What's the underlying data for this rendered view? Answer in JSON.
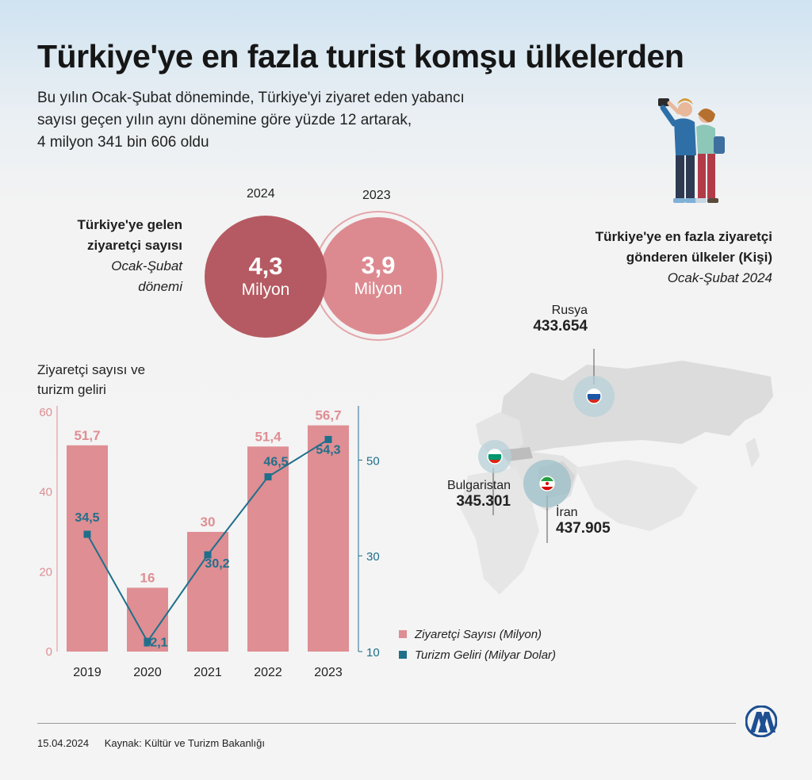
{
  "header": {
    "title": "Türkiye'ye en fazla turist komşu ülkelerden",
    "subtitle_lines": [
      "Bu yılın Ocak-Şubat döneminde, Türkiye'yi ziyaret eden yabancı",
      "sayısı geçen yılın aynı dönemine göre yüzde 12 artarak,",
      "4 milyon 341 bin 606 oldu"
    ]
  },
  "visitors": {
    "label_line1": "Türkiye'ye gelen",
    "label_line2": "ziyaretçi sayısı",
    "label_line3": "Ocak-Şubat",
    "label_line4": "dönemi",
    "y2024": {
      "year": "2024",
      "value": "4,3",
      "unit": "Milyon",
      "color": "#b55a62"
    },
    "y2023": {
      "year": "2023",
      "value": "3,9",
      "unit": "Milyon",
      "color": "#dc8a90"
    }
  },
  "map": {
    "title_line1": "Türkiye'ye en fazla ziyaretçi",
    "title_line2": "gönderen ülkeler (Kişi)",
    "title_line3": "Ocak-Şubat 2024",
    "countries": [
      {
        "name": "Rusya",
        "value": "433.654",
        "flag": "russia-flag-icon"
      },
      {
        "name": "Bulgaristan",
        "value": "345.301",
        "flag": "bulgaria-flag-icon"
      },
      {
        "name": "İran",
        "value": "437.905",
        "flag": "iran-flag-icon"
      }
    ]
  },
  "chart_title_line1": "Ziyaretçi sayısı ve",
  "chart_title_line2": "turizm geliri",
  "chart_data": {
    "type": "bar",
    "categories": [
      "2019",
      "2020",
      "2021",
      "2022",
      "2023"
    ],
    "series": [
      {
        "name": "Ziyaretçi Sayısı (Milyon)",
        "type": "bar",
        "axis": "left",
        "values": [
          51.7,
          16,
          30,
          51.4,
          56.7
        ],
        "labels": [
          "51,7",
          "16",
          "30",
          "51,4",
          "56,7"
        ],
        "color": "#df8e93"
      },
      {
        "name": "Turizm Geliri (Milyar Dolar)",
        "type": "line",
        "axis": "right",
        "values": [
          34.5,
          12.1,
          30.2,
          46.5,
          54.3
        ],
        "labels": [
          "34,5",
          "12,1",
          "30,2",
          "46,5",
          "54,3"
        ],
        "color": "#1f6f8b"
      }
    ],
    "y_left": {
      "ticks": [
        "0",
        "20",
        "40",
        "60"
      ],
      "range": [
        0,
        60
      ],
      "color": "#df8e93"
    },
    "y_right": {
      "ticks": [
        "10",
        "30",
        "50"
      ],
      "range": [
        10,
        60
      ],
      "color": "#1f6f8b"
    }
  },
  "legend": {
    "bar": "Ziyaretçi Sayısı (Milyon)",
    "line": "Turizm Geliri (Milyar Dolar)"
  },
  "footer": {
    "date": "15.04.2024",
    "source": "Kaynak: Kültür ve Turizm Bakanlığı",
    "logo": "AA"
  }
}
